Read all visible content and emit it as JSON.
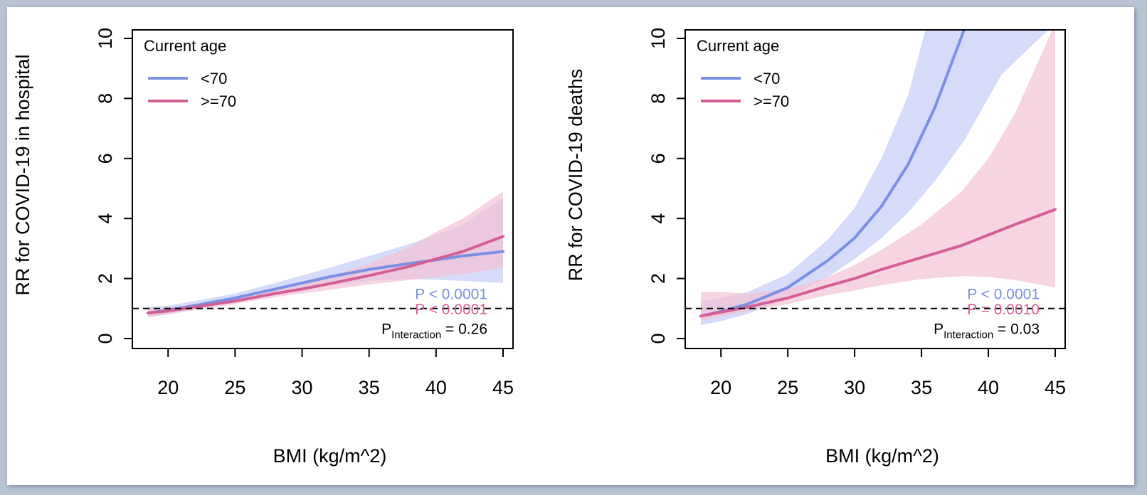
{
  "colors": {
    "under70": "#7b8fe3",
    "over70": "#d55e96",
    "under70_band": "#c7cff5",
    "over70_band": "#f2c2d6",
    "frame_bg": "#b9c3d4"
  },
  "chart_data": [
    {
      "type": "line",
      "xlabel": "BMI (kg/m^2)",
      "ylabel": "RR for COVID-19 in hospital",
      "xlim": [
        18.5,
        45
      ],
      "ylim": [
        0,
        10
      ],
      "xticks": [
        "20",
        "25",
        "30",
        "35",
        "40",
        "45"
      ],
      "yticks": [
        "0",
        "2",
        "4",
        "6",
        "8",
        "10"
      ],
      "reference_line": 1,
      "legend": {
        "title": "Current age",
        "position": "top-left",
        "entries": [
          "<70",
          ">=70"
        ]
      },
      "series": [
        {
          "name": "<70",
          "x": [
            18.5,
            20,
            22,
            25,
            28,
            30,
            32,
            35,
            38,
            40,
            42,
            45
          ],
          "y": [
            0.85,
            0.95,
            1.1,
            1.35,
            1.65,
            1.85,
            2.05,
            2.3,
            2.5,
            2.62,
            2.75,
            2.9
          ],
          "lower": [
            0.7,
            0.82,
            0.98,
            1.22,
            1.48,
            1.63,
            1.77,
            1.92,
            1.98,
            1.96,
            1.92,
            1.85
          ],
          "upper": [
            1.05,
            1.1,
            1.25,
            1.5,
            1.85,
            2.1,
            2.35,
            2.75,
            3.15,
            3.45,
            3.8,
            4.7
          ]
        },
        {
          "name": ">=70",
          "x": [
            18.5,
            20,
            22,
            25,
            28,
            30,
            32,
            35,
            38,
            40,
            42,
            45
          ],
          "y": [
            0.85,
            0.92,
            1.05,
            1.25,
            1.5,
            1.65,
            1.82,
            2.1,
            2.4,
            2.65,
            2.9,
            3.4
          ],
          "lower": [
            0.72,
            0.8,
            0.95,
            1.15,
            1.38,
            1.5,
            1.62,
            1.8,
            1.95,
            2.05,
            2.15,
            2.35
          ],
          "upper": [
            1.0,
            1.05,
            1.15,
            1.38,
            1.65,
            1.82,
            2.05,
            2.5,
            3.05,
            3.55,
            4.0,
            4.9
          ]
        }
      ],
      "annotations": {
        "p1": "P < 0.0001",
        "p2": "P < 0.0001",
        "p_int_label": "P",
        "p_int_sub": "Interaction",
        "p_int_value": " = 0.26"
      }
    },
    {
      "type": "line",
      "xlabel": "BMI (kg/m^2)",
      "ylabel": "RR for COVID-19 deaths",
      "xlim": [
        18.5,
        45
      ],
      "ylim": [
        0,
        10
      ],
      "xticks": [
        "20",
        "25",
        "30",
        "35",
        "40",
        "45"
      ],
      "yticks": [
        "0",
        "2",
        "4",
        "6",
        "8",
        "10"
      ],
      "reference_line": 1,
      "legend": {
        "title": "Current age",
        "position": "top-left",
        "entries": [
          "<70",
          ">=70"
        ]
      },
      "series": [
        {
          "name": "<70",
          "x": [
            18.5,
            20,
            22,
            25,
            28,
            30,
            32,
            34,
            36,
            38.2,
            41,
            45
          ],
          "y": [
            0.75,
            0.9,
            1.15,
            1.7,
            2.6,
            3.35,
            4.4,
            5.8,
            7.7,
            10.3,
            null,
            null
          ],
          "lower": [
            0.45,
            0.58,
            0.82,
            1.35,
            2.05,
            2.65,
            3.35,
            4.2,
            5.25,
            6.6,
            8.8,
            10.5
          ],
          "upper": [
            1.25,
            1.35,
            1.55,
            2.15,
            3.3,
            4.35,
            6.0,
            8.1,
            11.5,
            15,
            20,
            25
          ]
        },
        {
          "name": ">=70",
          "x": [
            18.5,
            20,
            22,
            25,
            28,
            30,
            32,
            35,
            38,
            40,
            42,
            45
          ],
          "y": [
            0.75,
            0.88,
            1.05,
            1.35,
            1.75,
            2.0,
            2.3,
            2.7,
            3.1,
            3.45,
            3.8,
            4.3
          ],
          "lower": [
            0.6,
            0.74,
            0.92,
            1.15,
            1.45,
            1.6,
            1.78,
            1.98,
            2.08,
            2.05,
            1.95,
            1.7
          ],
          "upper": [
            1.55,
            1.55,
            1.5,
            1.65,
            2.05,
            2.45,
            2.95,
            3.8,
            4.9,
            6.0,
            7.5,
            10.5
          ]
        }
      ],
      "annotations": {
        "p1": "P < 0.0001",
        "p2": "P = 0.0010",
        "p_int_label": "P",
        "p_int_sub": "Interaction",
        "p_int_value": " = 0.03"
      }
    }
  ]
}
